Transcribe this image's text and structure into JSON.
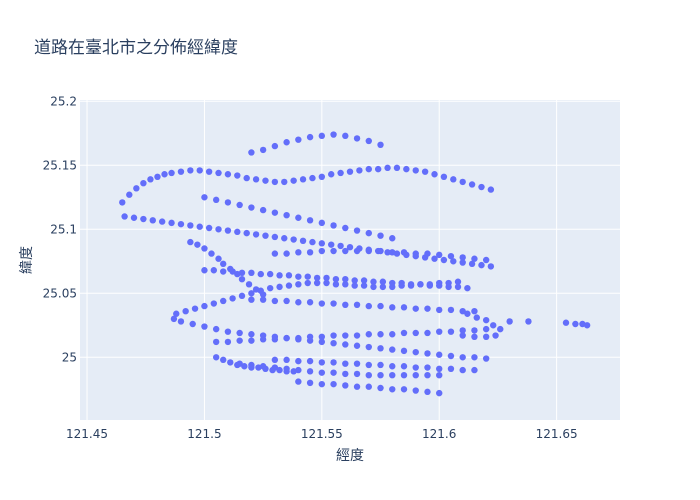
{
  "chart_data": {
    "type": "scatter",
    "title": "道路在臺北市之分佈經緯度",
    "xlabel": "經度",
    "ylabel": "緯度",
    "xlim": [
      121.447,
      121.677
    ],
    "ylim": [
      24.951,
      25.201
    ],
    "xticks": [
      121.45,
      121.5,
      121.55,
      121.6,
      121.65
    ],
    "xtick_labels": [
      "121.45",
      "121.5",
      "121.55",
      "121.6",
      "121.65"
    ],
    "yticks": [
      25.0,
      25.05,
      25.1,
      25.15,
      25.2
    ],
    "ytick_labels": [
      "25",
      "25.05",
      "25.1",
      "25.15",
      "25.2"
    ],
    "grid": true,
    "legend": "none",
    "marker_color": "#636efa",
    "background_color": "#e5ecf6",
    "series": [
      {
        "x": [
          121.465,
          121.468,
          121.471,
          121.474,
          121.477,
          121.48,
          121.483,
          121.486,
          121.49,
          121.494,
          121.498,
          121.502,
          121.506,
          121.51,
          121.514,
          121.518,
          121.522,
          121.526,
          121.53,
          121.534,
          121.538,
          121.542,
          121.546,
          121.55,
          121.554,
          121.558,
          121.562,
          121.566,
          121.57,
          121.574,
          121.578,
          121.582,
          121.586,
          121.59,
          121.594,
          121.598,
          121.602,
          121.606,
          121.61,
          121.614,
          121.618,
          121.622,
          121.488,
          121.492,
          121.496,
          121.5,
          121.504,
          121.508,
          121.512,
          121.516,
          121.52,
          121.524,
          121.528,
          121.532,
          121.536,
          121.54,
          121.544,
          121.548,
          121.552,
          121.556,
          121.56,
          121.564,
          121.568,
          121.572,
          121.576,
          121.58,
          121.584,
          121.588,
          121.592,
          121.596,
          121.6,
          121.604,
          121.608,
          121.505,
          121.51,
          121.515,
          121.52,
          121.525,
          121.53,
          121.535,
          121.54,
          121.545,
          121.55,
          121.555,
          121.56,
          121.565,
          121.57,
          121.575,
          121.58,
          121.585,
          121.59,
          121.595,
          121.6,
          121.605,
          121.61,
          121.615,
          121.62,
          121.466,
          121.47,
          121.474,
          121.478,
          121.482,
          121.486,
          121.49,
          121.494,
          121.498,
          121.502,
          121.506,
          121.51,
          121.514,
          121.518,
          121.522,
          121.526,
          121.53,
          121.534,
          121.538,
          121.542,
          121.546,
          121.55,
          121.554,
          121.558,
          121.562,
          121.566,
          121.57,
          121.574,
          121.578,
          121.582,
          121.586,
          121.59,
          121.594,
          121.598,
          121.602,
          121.606,
          121.61,
          121.614,
          121.618,
          121.622,
          121.5,
          121.504,
          121.508,
          121.512,
          121.516,
          121.52,
          121.524,
          121.528,
          121.532,
          121.536,
          121.54,
          121.544,
          121.548,
          121.552,
          121.556,
          121.56,
          121.564,
          121.568,
          121.572,
          121.576,
          121.58,
          121.584,
          121.588,
          121.592,
          121.596,
          121.6,
          121.604,
          121.608,
          121.612,
          121.53,
          121.535,
          121.54,
          121.545,
          121.55,
          121.555,
          121.56,
          121.565,
          121.57,
          121.575,
          121.58,
          121.585,
          121.59,
          121.595,
          121.6,
          121.605,
          121.61,
          121.615,
          121.62,
          121.487,
          121.49,
          121.495,
          121.5,
          121.505,
          121.51,
          121.515,
          121.52,
          121.525,
          121.53,
          121.535,
          121.54,
          121.545,
          121.55,
          121.555,
          121.56,
          121.565,
          121.57,
          121.575,
          121.58,
          121.585,
          121.59,
          121.595,
          121.6,
          121.605,
          121.61,
          121.615,
          121.62,
          121.515,
          121.52,
          121.525,
          121.53,
          121.535,
          121.54,
          121.545,
          121.55,
          121.555,
          121.56,
          121.565,
          121.57,
          121.575,
          121.58,
          121.585,
          121.59,
          121.595,
          121.6,
          121.53,
          121.535,
          121.54,
          121.545,
          121.55,
          121.555,
          121.56,
          121.565,
          121.57,
          121.575,
          121.58,
          121.585,
          121.59,
          121.595,
          121.6,
          121.605,
          121.61,
          121.615,
          121.54,
          121.545,
          121.55,
          121.555,
          121.56,
          121.565,
          121.57,
          121.575,
          121.58,
          121.585,
          121.59,
          121.595,
          121.6,
          121.52,
          121.525,
          121.53,
          121.535,
          121.54,
          121.545,
          121.55,
          121.555,
          121.56,
          121.565,
          121.57,
          121.575,
          121.58,
          121.585,
          121.59,
          121.595,
          121.6,
          121.605,
          121.61,
          121.615,
          121.5,
          121.505,
          121.51,
          121.515,
          121.52,
          121.525,
          121.53,
          121.535,
          121.54,
          121.545,
          121.55,
          121.555,
          121.56,
          121.565,
          121.57,
          121.575,
          121.58,
          121.52,
          121.525,
          121.53,
          121.535,
          121.54,
          121.545,
          121.55,
          121.555,
          121.56,
          121.565,
          121.57,
          121.575,
          121.63,
          121.638,
          121.654,
          121.658,
          121.661,
          121.663,
          121.612,
          121.616,
          121.62,
          121.623,
          121.626,
          121.61,
          121.615,
          121.62,
          121.624,
          121.494,
          121.497,
          121.5,
          121.503,
          121.506,
          121.508,
          121.511,
          121.514,
          121.516,
          121.519,
          121.522,
          121.525,
          121.505,
          121.508,
          121.511,
          121.514,
          121.517,
          121.52,
          121.523,
          121.526,
          121.529,
          121.532,
          121.535,
          121.538
        ],
        "y": [
          25.121,
          25.127,
          25.132,
          25.136,
          25.139,
          25.141,
          25.143,
          25.144,
          25.145,
          25.146,
          25.146,
          25.145,
          25.144,
          25.143,
          25.142,
          25.14,
          25.139,
          25.138,
          25.137,
          25.137,
          25.138,
          25.139,
          25.14,
          25.141,
          25.143,
          25.144,
          25.145,
          25.146,
          25.147,
          25.147,
          25.148,
          25.148,
          25.147,
          25.146,
          25.145,
          25.143,
          25.141,
          25.139,
          25.137,
          25.135,
          25.133,
          25.131,
          25.034,
          25.036,
          25.038,
          25.04,
          25.042,
          25.044,
          25.046,
          25.048,
          25.05,
          25.052,
          25.054,
          25.055,
          25.056,
          25.057,
          25.058,
          25.058,
          25.058,
          25.057,
          25.057,
          25.056,
          25.056,
          25.055,
          25.055,
          25.055,
          25.056,
          25.056,
          25.057,
          25.057,
          25.058,
          25.058,
          25.059,
          25.012,
          25.012,
          25.013,
          25.013,
          25.014,
          25.014,
          25.015,
          25.015,
          25.016,
          25.016,
          25.017,
          25.017,
          25.017,
          25.018,
          25.018,
          25.018,
          25.019,
          25.019,
          25.019,
          25.02,
          25.02,
          25.021,
          25.021,
          25.022,
          25.11,
          25.109,
          25.108,
          25.107,
          25.106,
          25.105,
          25.104,
          25.103,
          25.102,
          25.101,
          25.1,
          25.099,
          25.098,
          25.097,
          25.096,
          25.095,
          25.094,
          25.093,
          25.092,
          25.091,
          25.09,
          25.089,
          25.088,
          25.087,
          25.086,
          25.085,
          25.084,
          25.083,
          25.082,
          25.081,
          25.08,
          25.079,
          25.078,
          25.077,
          25.076,
          25.075,
          25.074,
          25.073,
          25.072,
          25.071,
          25.068,
          25.068,
          25.067,
          25.067,
          25.066,
          25.066,
          25.065,
          25.065,
          25.064,
          25.064,
          25.063,
          25.063,
          25.062,
          25.062,
          25.061,
          25.061,
          25.06,
          25.06,
          25.059,
          25.059,
          25.058,
          25.058,
          25.057,
          25.057,
          25.056,
          25.056,
          25.055,
          25.055,
          25.054,
          25.081,
          25.081,
          25.082,
          25.082,
          25.083,
          25.083,
          25.083,
          25.083,
          25.083,
          25.083,
          25.082,
          25.082,
          25.081,
          25.081,
          25.08,
          25.079,
          25.078,
          25.077,
          25.076,
          25.03,
          25.028,
          25.026,
          25.024,
          25.022,
          25.02,
          25.019,
          25.018,
          25.017,
          25.016,
          25.015,
          25.014,
          25.013,
          25.012,
          25.011,
          25.01,
          25.009,
          25.008,
          25.007,
          25.006,
          25.005,
          25.004,
          25.003,
          25.002,
          25.001,
          25.0,
          25.0,
          24.999,
          24.995,
          24.994,
          24.993,
          24.992,
          24.991,
          24.99,
          24.989,
          24.988,
          24.988,
          24.987,
          24.987,
          24.986,
          24.986,
          24.986,
          24.986,
          24.986,
          24.986,
          24.986,
          24.998,
          24.998,
          24.997,
          24.997,
          24.996,
          24.996,
          24.995,
          24.995,
          24.994,
          24.994,
          24.993,
          24.993,
          24.992,
          24.992,
          24.991,
          24.991,
          24.99,
          24.99,
          24.981,
          24.98,
          24.979,
          24.979,
          24.978,
          24.977,
          24.977,
          24.976,
          24.975,
          24.975,
          24.974,
          24.973,
          24.972,
          25.045,
          25.045,
          25.044,
          25.044,
          25.043,
          25.043,
          25.042,
          25.042,
          25.041,
          25.041,
          25.04,
          25.04,
          25.039,
          25.039,
          25.038,
          25.038,
          25.037,
          25.037,
          25.036,
          25.036,
          25.125,
          25.123,
          25.121,
          25.119,
          25.117,
          25.115,
          25.113,
          25.111,
          25.109,
          25.107,
          25.105,
          25.103,
          25.101,
          25.099,
          25.097,
          25.095,
          25.093,
          25.16,
          25.162,
          25.165,
          25.168,
          25.17,
          25.172,
          25.173,
          25.174,
          25.173,
          25.171,
          25.169,
          25.166,
          25.028,
          25.028,
          25.027,
          25.026,
          25.026,
          25.025,
          25.034,
          25.031,
          25.029,
          25.025,
          25.022,
          25.017,
          25.016,
          25.016,
          25.017,
          25.09,
          25.088,
          25.085,
          25.081,
          25.077,
          25.073,
          25.069,
          25.065,
          25.061,
          25.057,
          25.053,
          25.049,
          25.0,
          24.998,
          24.996,
          24.994,
          24.993,
          24.992,
          24.992,
          24.991,
          24.99,
          24.99,
          24.989,
          24.989
        ]
      }
    ]
  }
}
